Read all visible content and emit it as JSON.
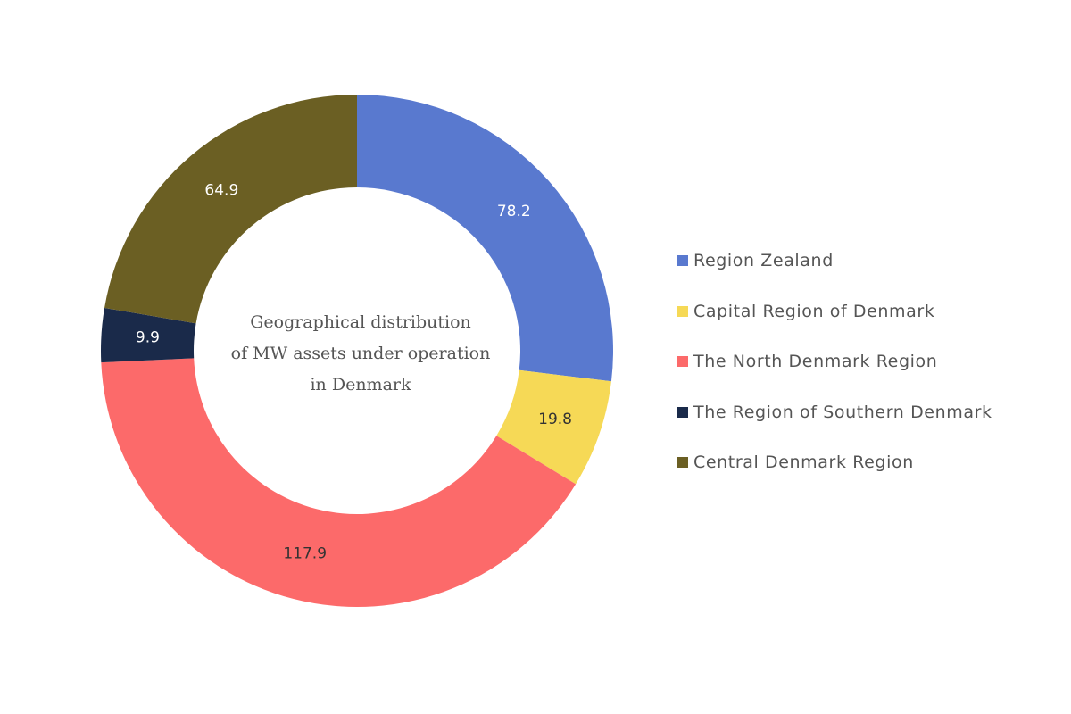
{
  "chart_data": {
    "type": "pie",
    "title": "Geographical distribution of MW  assets under operation in Denmark",
    "title_lines": [
      "Geographical distribution",
      "of MW  assets under operation",
      "in Denmark"
    ],
    "donut": true,
    "legend_position": "right",
    "categories": [
      "Region Zealand",
      "Capital Region of Denmark",
      "The North Denmark Region",
      "The Region of Southern Denmark",
      "Central Denmark Region"
    ],
    "values": [
      78.2,
      19.8,
      117.9,
      9.9,
      64.9
    ],
    "value_labels": [
      "78.2",
      "19.8",
      "117.9",
      "9.9",
      "64.9"
    ],
    "colors": [
      "#5979cf",
      "#f6d956",
      "#fc6a6a",
      "#1a2a4a",
      "#6b5f23"
    ],
    "label_colors": [
      "#ffffff",
      "#333333",
      "#333333",
      "#ffffff",
      "#ffffff"
    ]
  }
}
